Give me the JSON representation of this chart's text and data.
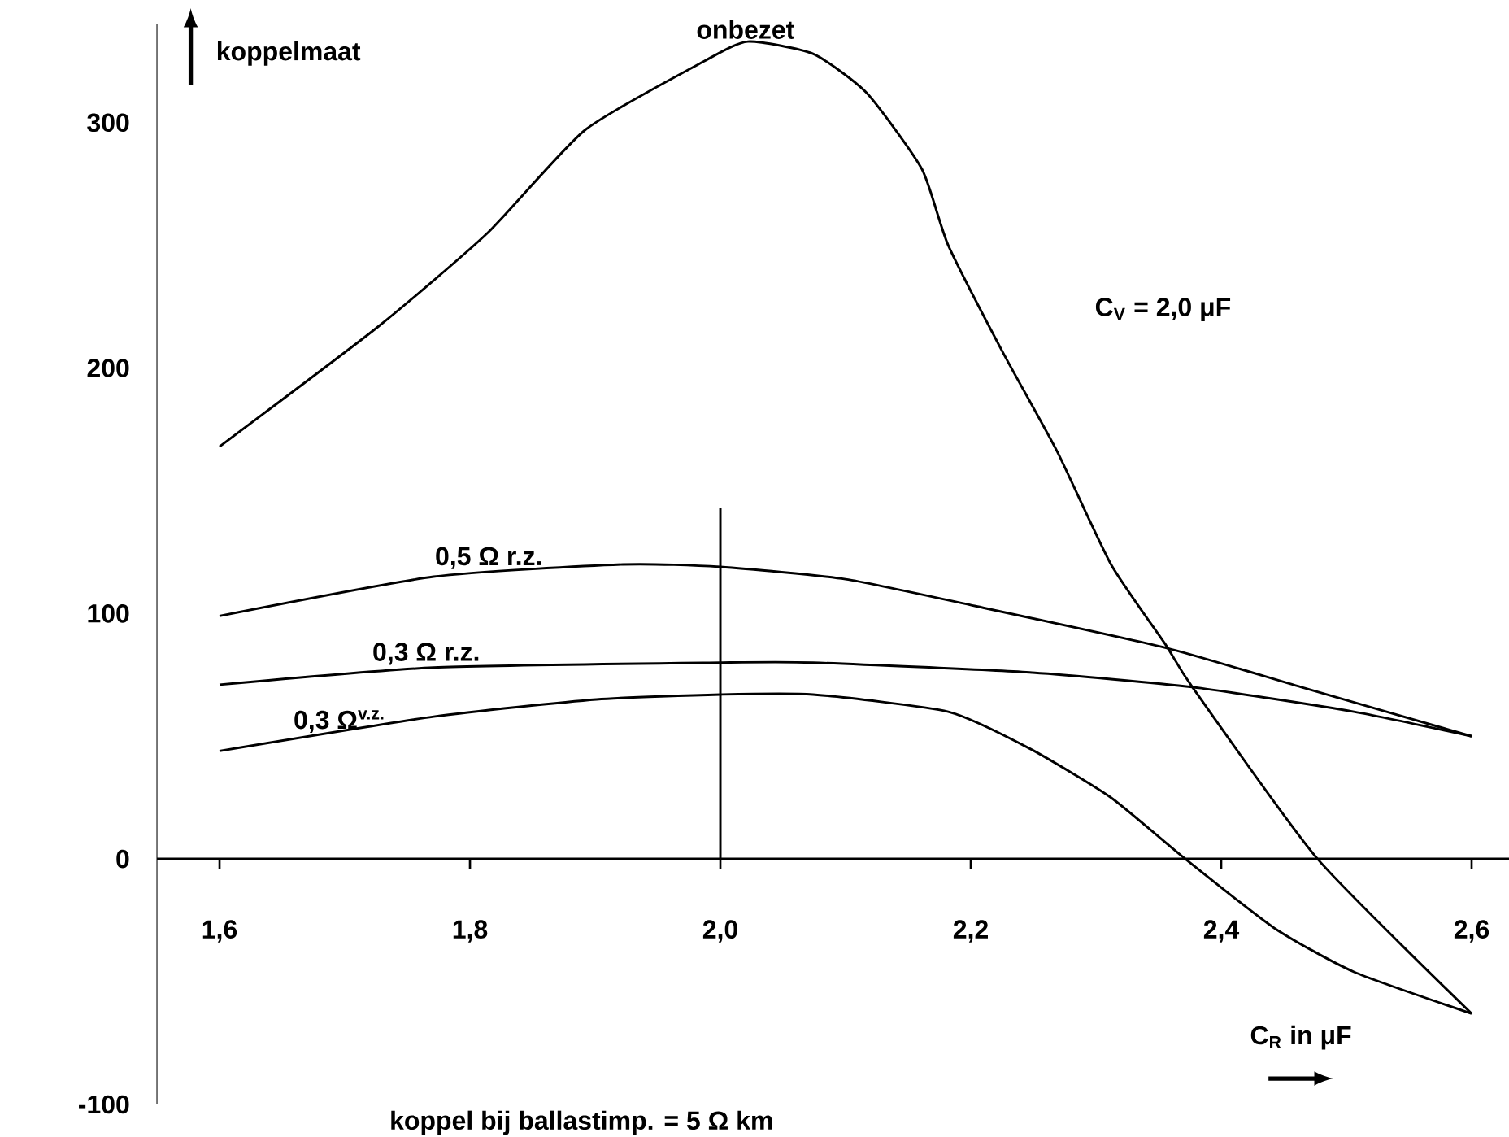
{
  "chart_data": {
    "type": "line",
    "ylabel": "koppelmaat",
    "xlabel": "C$_{R}$ in μF",
    "annotations": [
      "C$_{V}$ = 2,0 μF",
      "koppel bij ballastimp. = 5 Ω km"
    ],
    "xlim": [
      1.55,
      2.63
    ],
    "ylim": [
      -100,
      340
    ],
    "xticks": [
      {
        "value": 1.6,
        "label": "1,6"
      },
      {
        "value": 1.8,
        "label": "1,8"
      },
      {
        "value": 2.0,
        "label": "2,0"
      },
      {
        "value": 2.2,
        "label": "2,2"
      },
      {
        "value": 2.4,
        "label": "2,4"
      },
      {
        "value": 2.6,
        "label": "2,6"
      }
    ],
    "yticks": [
      -100,
      0,
      100,
      200,
      300
    ],
    "line_style": "solid",
    "series": [
      {
        "name": "onbezet",
        "color": "#000000",
        "x": [
          1.6,
          1.727,
          1.814,
          1.892,
          1.987,
          2.022,
          2.074,
          2.117,
          2.161,
          2.182,
          2.226,
          2.269,
          2.312,
          2.356,
          2.377,
          2.477,
          2.6
        ],
        "values": [
          168,
          217,
          255,
          297,
          325,
          333,
          328,
          312,
          281,
          250,
          206,
          166,
          120,
          87,
          70,
          0,
          -63
        ]
      },
      {
        "name": "0,5 Ω r.z.",
        "color": "#000000",
        "x": [
          1.6,
          1.771,
          1.922,
          2.0,
          2.1,
          2.204,
          2.356,
          2.464,
          2.6
        ],
        "values": [
          99,
          115,
          120,
          119,
          114,
          103,
          86,
          70,
          50
        ]
      },
      {
        "name": "0,3 Ω r.z.",
        "color": "#000000",
        "x": [
          1.6,
          1.771,
          2.0,
          2.074,
          2.247,
          2.377,
          2.506,
          2.6
        ],
        "values": [
          71,
          78,
          80,
          80,
          76,
          70,
          60,
          50
        ]
      },
      {
        "name": "0,3 Ω$^{v.z.}$",
        "color": "#000000",
        "x": [
          1.6,
          1.771,
          1.901,
          2.0,
          2.074,
          2.182,
          2.247,
          2.312,
          2.369,
          2.442,
          2.506,
          2.6
        ],
        "values": [
          44,
          58,
          65,
          67,
          67,
          60,
          45,
          25,
          1,
          -28,
          -46,
          -63
        ]
      },
      {
        "color": "#000000",
        "x": [
          2.0,
          2.0
        ],
        "values": [
          0,
          143
        ]
      }
    ]
  }
}
